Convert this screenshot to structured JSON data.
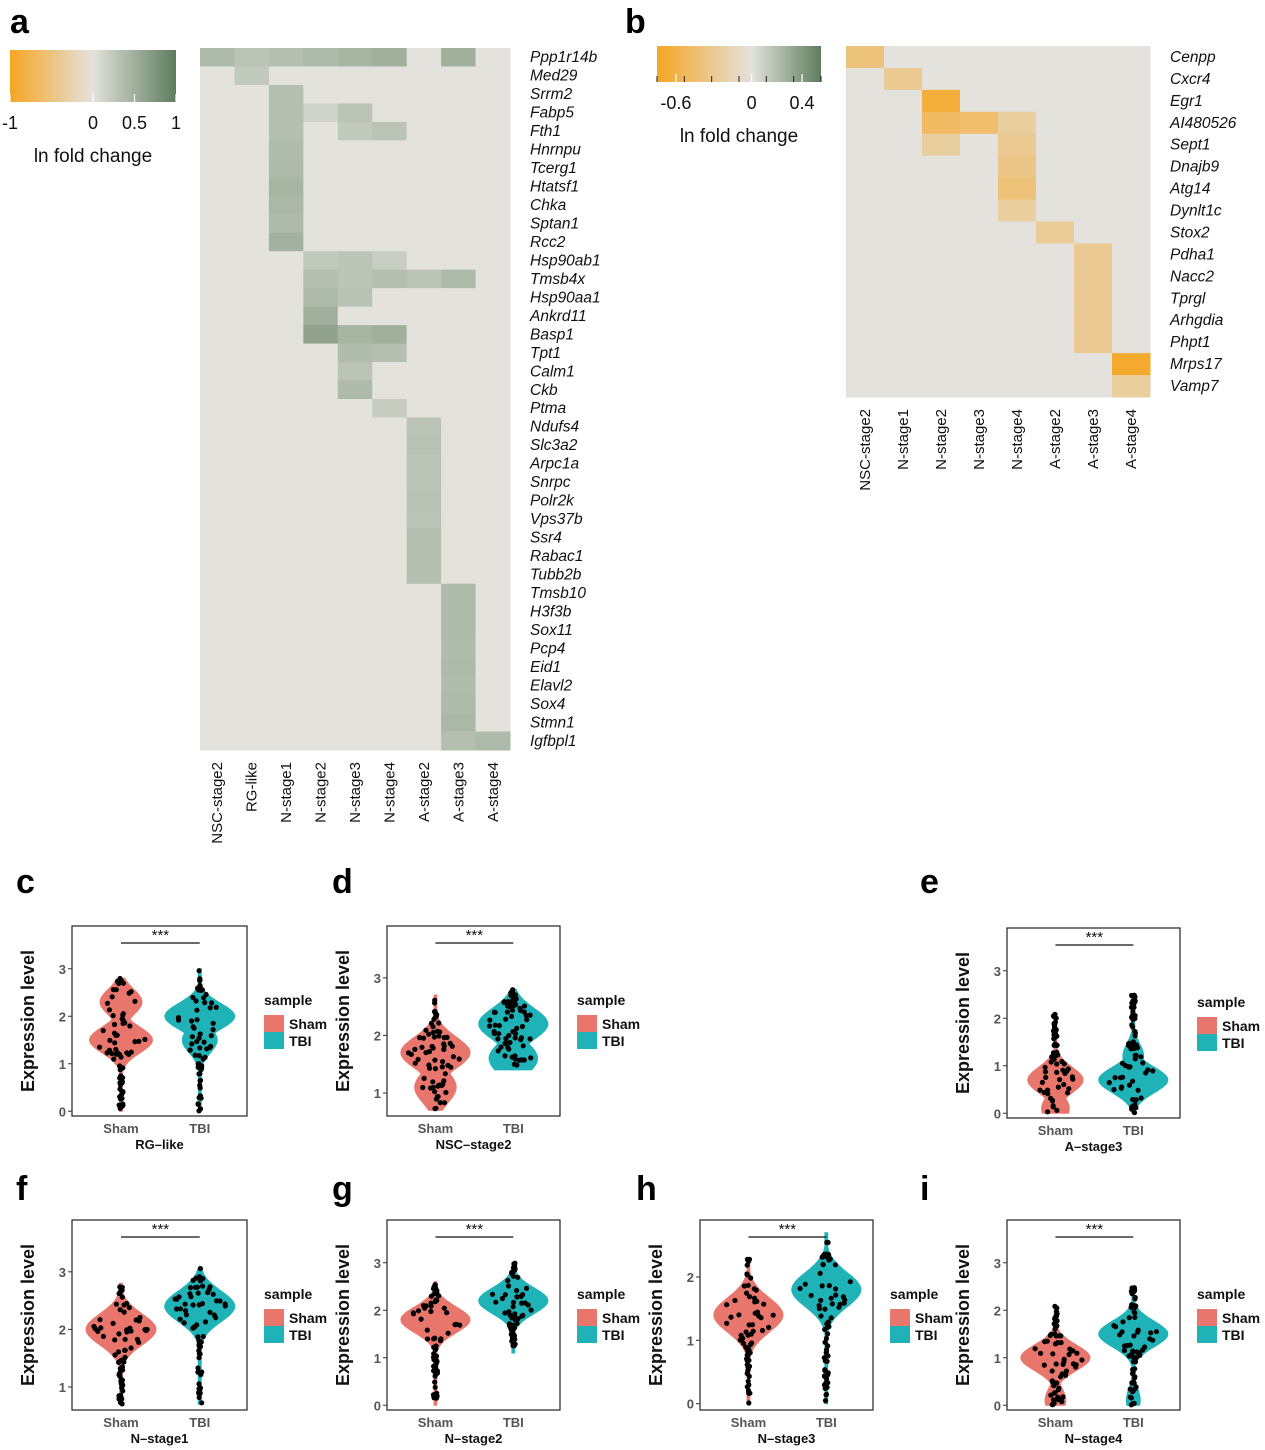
{
  "panel_labels": [
    "a",
    "b",
    "c",
    "d",
    "e",
    "f",
    "g",
    "h",
    "i"
  ],
  "colors": {
    "neutral": "#e3e2dc",
    "green_max": "#5e7d5e",
    "orange_max": "#f5a623",
    "sham": "#e8766d",
    "tbi": "#1fb3b8",
    "points": "#000000"
  },
  "chart_data": [
    {
      "id": "a",
      "type": "heatmap",
      "legend": {
        "title": "ln fold change",
        "ticks": [
          "-1",
          "0",
          "0.5",
          "1"
        ],
        "tick_values": [
          -1,
          0,
          0.5,
          1
        ],
        "range": [
          -1,
          1
        ]
      },
      "columns": [
        "NSC-stage2",
        "RG-like",
        "N-stage1",
        "N-stage2",
        "N-stage3",
        "N-stage4",
        "A-stage2",
        "A-stage3",
        "A-stage4"
      ],
      "rows": [
        "Ppp1r14b",
        "Med29",
        "Srrm2",
        "Fabp5",
        "Fth1",
        "Hnrnpu",
        "Tcerg1",
        "Htatsf1",
        "Chka",
        "Sptan1",
        "Rcc2",
        "Hsp90ab1",
        "Tmsb4x",
        "Hsp90aa1",
        "Ankrd11",
        "Basp1",
        "Tpt1",
        "Calm1",
        "Ckb",
        "Ptma",
        "Ndufs4",
        "Slc3a2",
        "Arpc1a",
        "Snrpc",
        "Polr2k",
        "Vps37b",
        "Ssr4",
        "Rabac1",
        "Tubb2b",
        "Tmsb10",
        "H3f3b",
        "Sox11",
        "Pcp4",
        "Eid1",
        "Elavl2",
        "Sox4",
        "Stmn1",
        "Igfbpl1"
      ],
      "values": [
        [
          0.4,
          0.3,
          0.35,
          0.4,
          0.45,
          0.5,
          0,
          0.5,
          0
        ],
        [
          0,
          0.25,
          0,
          0,
          0,
          0,
          0,
          0,
          0
        ],
        [
          0,
          0,
          0.35,
          0,
          0,
          0,
          0,
          0,
          0
        ],
        [
          0,
          0,
          0.35,
          0.15,
          0.3,
          0,
          0,
          0,
          0
        ],
        [
          0,
          0,
          0.35,
          0,
          0.25,
          0.3,
          0,
          0,
          0
        ],
        [
          0,
          0,
          0.38,
          0,
          0,
          0,
          0,
          0,
          0
        ],
        [
          0,
          0,
          0.4,
          0,
          0,
          0,
          0,
          0,
          0
        ],
        [
          0,
          0,
          0.45,
          0,
          0,
          0,
          0,
          0,
          0
        ],
        [
          0,
          0,
          0.42,
          0,
          0,
          0,
          0,
          0,
          0
        ],
        [
          0,
          0,
          0.4,
          0,
          0,
          0,
          0,
          0,
          0
        ],
        [
          0,
          0,
          0.48,
          0,
          0,
          0,
          0,
          0,
          0
        ],
        [
          0,
          0,
          0,
          0.25,
          0.3,
          0.2,
          0,
          0,
          0
        ],
        [
          0,
          0,
          0,
          0.35,
          0.3,
          0.35,
          0.3,
          0.4,
          0
        ],
        [
          0,
          0,
          0,
          0.4,
          0.32,
          0,
          0,
          0,
          0
        ],
        [
          0,
          0,
          0,
          0.5,
          0,
          0,
          0,
          0,
          0
        ],
        [
          0,
          0,
          0,
          0.62,
          0.45,
          0.5,
          0,
          0,
          0
        ],
        [
          0,
          0,
          0,
          0,
          0.38,
          0.35,
          0,
          0,
          0
        ],
        [
          0,
          0,
          0,
          0,
          0.3,
          0,
          0,
          0,
          0
        ],
        [
          0,
          0,
          0,
          0,
          0.4,
          0,
          0,
          0,
          0
        ],
        [
          0,
          0,
          0,
          0,
          0,
          0.22,
          0,
          0,
          0
        ],
        [
          0,
          0,
          0,
          0,
          0,
          0,
          0.3,
          0,
          0
        ],
        [
          0,
          0,
          0,
          0,
          0,
          0,
          0.32,
          0,
          0
        ],
        [
          0,
          0,
          0,
          0,
          0,
          0,
          0.3,
          0,
          0
        ],
        [
          0,
          0,
          0,
          0,
          0,
          0,
          0.3,
          0,
          0
        ],
        [
          0,
          0,
          0,
          0,
          0,
          0,
          0.32,
          0,
          0
        ],
        [
          0,
          0,
          0,
          0,
          0,
          0,
          0.3,
          0,
          0
        ],
        [
          0,
          0,
          0,
          0,
          0,
          0,
          0.35,
          0,
          0
        ],
        [
          0,
          0,
          0,
          0,
          0,
          0,
          0.35,
          0,
          0
        ],
        [
          0,
          0,
          0,
          0,
          0,
          0,
          0.35,
          0,
          0
        ],
        [
          0,
          0,
          0,
          0,
          0,
          0,
          0,
          0.4,
          0
        ],
        [
          0,
          0,
          0,
          0,
          0,
          0,
          0,
          0.4,
          0
        ],
        [
          0,
          0,
          0,
          0,
          0,
          0,
          0,
          0.4,
          0
        ],
        [
          0,
          0,
          0,
          0,
          0,
          0,
          0,
          0.38,
          0
        ],
        [
          0,
          0,
          0,
          0,
          0,
          0,
          0,
          0.4,
          0
        ],
        [
          0,
          0,
          0,
          0,
          0,
          0,
          0,
          0.38,
          0
        ],
        [
          0,
          0,
          0,
          0,
          0,
          0,
          0,
          0.4,
          0
        ],
        [
          0,
          0,
          0,
          0,
          0,
          0,
          0,
          0.42,
          0
        ],
        [
          0,
          0,
          0,
          0,
          0,
          0,
          0,
          0.35,
          0.4
        ]
      ]
    },
    {
      "id": "b",
      "type": "heatmap",
      "legend": {
        "title": "ln fold change",
        "ticks": [
          "-0.6",
          "0",
          "0.4"
        ],
        "tick_values": [
          -0.6,
          0,
          0.4
        ],
        "range": [
          -0.75,
          0.55
        ]
      },
      "columns": [
        "NSC-stage2",
        "N-stage1",
        "N-stage2",
        "N-stage3",
        "N-stage4",
        "A-stage2",
        "A-stage3",
        "A-stage4"
      ],
      "rows": [
        "Cenpp",
        "Cxcr4",
        "Egr1",
        "AI480526",
        "Sept1",
        "Dnajb9",
        "Atg14",
        "Dynlt1c",
        "Stox2",
        "Pdha1",
        "Nacc2",
        "Tprgl",
        "Arhgdia",
        "Phpt1",
        "Mrps17",
        "Vamp7"
      ],
      "values": [
        [
          -0.4,
          0,
          0,
          0,
          0,
          0,
          0,
          0
        ],
        [
          0,
          -0.3,
          0,
          0,
          0,
          0,
          0,
          0
        ],
        [
          0,
          0,
          -0.65,
          0,
          0,
          0,
          0,
          0
        ],
        [
          0,
          0,
          -0.5,
          -0.45,
          -0.25,
          0,
          0,
          0
        ],
        [
          0,
          0,
          -0.25,
          0,
          -0.3,
          0,
          0,
          0
        ],
        [
          0,
          0,
          0,
          0,
          -0.35,
          0,
          0,
          0
        ],
        [
          0,
          0,
          0,
          0,
          -0.4,
          0,
          0,
          0
        ],
        [
          0,
          0,
          0,
          0,
          -0.25,
          0,
          0,
          0
        ],
        [
          0,
          0,
          0,
          0,
          0,
          -0.28,
          0,
          0
        ],
        [
          0,
          0,
          0,
          0,
          0,
          0,
          -0.3,
          0
        ],
        [
          0,
          0,
          0,
          0,
          0,
          0,
          -0.3,
          0
        ],
        [
          0,
          0,
          0,
          0,
          0,
          0,
          -0.3,
          0
        ],
        [
          0,
          0,
          0,
          0,
          0,
          0,
          -0.3,
          0
        ],
        [
          0,
          0,
          0,
          0,
          0,
          0,
          -0.3,
          0
        ],
        [
          0,
          0,
          0,
          0,
          0,
          0,
          0,
          -0.7
        ],
        [
          0,
          0,
          0,
          0,
          0,
          0,
          0,
          -0.25
        ]
      ]
    },
    {
      "id": "c",
      "type": "violin",
      "xlabel": "RG–like",
      "ylabel": "Expression level",
      "categories": [
        "Sham",
        "TBI"
      ],
      "yticks": [
        0,
        1,
        2,
        3
      ],
      "ylim": [
        -0.1,
        3.9
      ],
      "significance": "***",
      "legend": {
        "title": "sample",
        "items": [
          "Sham",
          "TBI"
        ]
      },
      "series": [
        {
          "name": "Sham",
          "min": 0,
          "max": 2.8,
          "peaks": [
            [
              1.5,
              0.9
            ],
            [
              2.3,
              0.6
            ]
          ]
        },
        {
          "name": "TBI",
          "min": 0,
          "max": 3.0,
          "peaks": [
            [
              2.0,
              1.0
            ],
            [
              1.5,
              0.5
            ]
          ]
        }
      ]
    },
    {
      "id": "d",
      "type": "violin",
      "xlabel": "NSC–stage2",
      "ylabel": "Expression level",
      "categories": [
        "Sham",
        "TBI"
      ],
      "yticks": [
        1,
        2,
        3
      ],
      "ylim": [
        0.6,
        3.9
      ],
      "significance": "***",
      "legend": {
        "title": "sample",
        "items": [
          "Sham",
          "TBI"
        ]
      },
      "series": [
        {
          "name": "Sham",
          "min": 0.7,
          "max": 2.7,
          "peaks": [
            [
              1.7,
              1.0
            ],
            [
              1.1,
              0.6
            ]
          ]
        },
        {
          "name": "TBI",
          "min": 1.4,
          "max": 2.8,
          "peaks": [
            [
              2.2,
              1.0
            ],
            [
              1.6,
              0.7
            ]
          ]
        }
      ]
    },
    {
      "id": "e",
      "type": "violin",
      "xlabel": "A–stage3",
      "ylabel": "Expression level",
      "categories": [
        "Sham",
        "TBI"
      ],
      "yticks": [
        0,
        1,
        2,
        3
      ],
      "ylim": [
        -0.1,
        3.9
      ],
      "significance": "***",
      "legend": {
        "title": "sample",
        "items": [
          "Sham",
          "TBI"
        ]
      },
      "series": [
        {
          "name": "Sham",
          "min": 0,
          "max": 2.1,
          "peaks": [
            [
              0.7,
              0.8
            ],
            [
              0.1,
              0.4
            ]
          ]
        },
        {
          "name": "TBI",
          "min": 0,
          "max": 2.5,
          "peaks": [
            [
              0.7,
              1.0
            ],
            [
              1.2,
              0.3
            ]
          ]
        }
      ]
    },
    {
      "id": "f",
      "type": "violin",
      "xlabel": "N–stage1",
      "ylabel": "Expression level",
      "categories": [
        "Sham",
        "TBI"
      ],
      "yticks": [
        1,
        2,
        3
      ],
      "ylim": [
        0.6,
        3.9
      ],
      "significance": "***",
      "legend": {
        "title": "sample",
        "items": [
          "Sham",
          "TBI"
        ]
      },
      "series": [
        {
          "name": "Sham",
          "min": 0.7,
          "max": 2.8,
          "peaks": [
            [
              2.0,
              1.0
            ]
          ]
        },
        {
          "name": "TBI",
          "min": 0.7,
          "max": 3.1,
          "peaks": [
            [
              2.4,
              1.0
            ]
          ]
        }
      ]
    },
    {
      "id": "g",
      "type": "violin",
      "xlabel": "N–stage2",
      "ylabel": "Expression level",
      "categories": [
        "Sham",
        "TBI"
      ],
      "yticks": [
        0,
        1,
        2,
        3
      ],
      "ylim": [
        -0.1,
        3.9
      ],
      "significance": "***",
      "legend": {
        "title": "sample",
        "items": [
          "Sham",
          "TBI"
        ]
      },
      "series": [
        {
          "name": "Sham",
          "min": 0,
          "max": 2.6,
          "peaks": [
            [
              1.8,
              1.0
            ]
          ]
        },
        {
          "name": "TBI",
          "min": 1.1,
          "max": 3.0,
          "peaks": [
            [
              2.2,
              1.0
            ]
          ]
        }
      ]
    },
    {
      "id": "h",
      "type": "violin",
      "xlabel": "N–stage3",
      "ylabel": "Expression level",
      "categories": [
        "Sham",
        "TBI"
      ],
      "yticks": [
        0,
        1,
        2
      ],
      "ylim": [
        -0.1,
        2.9
      ],
      "significance": "***",
      "legend": {
        "title": "sample",
        "items": [
          "Sham",
          "TBI"
        ]
      },
      "series": [
        {
          "name": "Sham",
          "min": 0,
          "max": 2.3,
          "peaks": [
            [
              1.4,
              1.0
            ]
          ]
        },
        {
          "name": "TBI",
          "min": 0,
          "max": 2.7,
          "peaks": [
            [
              1.8,
              1.0
            ]
          ]
        }
      ]
    },
    {
      "id": "i",
      "type": "violin",
      "xlabel": "N–stage4",
      "ylabel": "Expression level",
      "categories": [
        "Sham",
        "TBI"
      ],
      "yticks": [
        0,
        1,
        2,
        3
      ],
      "ylim": [
        -0.1,
        3.9
      ],
      "significance": "***",
      "legend": {
        "title": "sample",
        "items": [
          "Sham",
          "TBI"
        ]
      },
      "series": [
        {
          "name": "Sham",
          "min": 0,
          "max": 2.1,
          "peaks": [
            [
              1.0,
              1.0
            ],
            [
              0.1,
              0.3
            ]
          ]
        },
        {
          "name": "TBI",
          "min": 0,
          "max": 2.5,
          "peaks": [
            [
              1.5,
              1.0
            ],
            [
              0.1,
              0.2
            ]
          ]
        }
      ]
    }
  ]
}
